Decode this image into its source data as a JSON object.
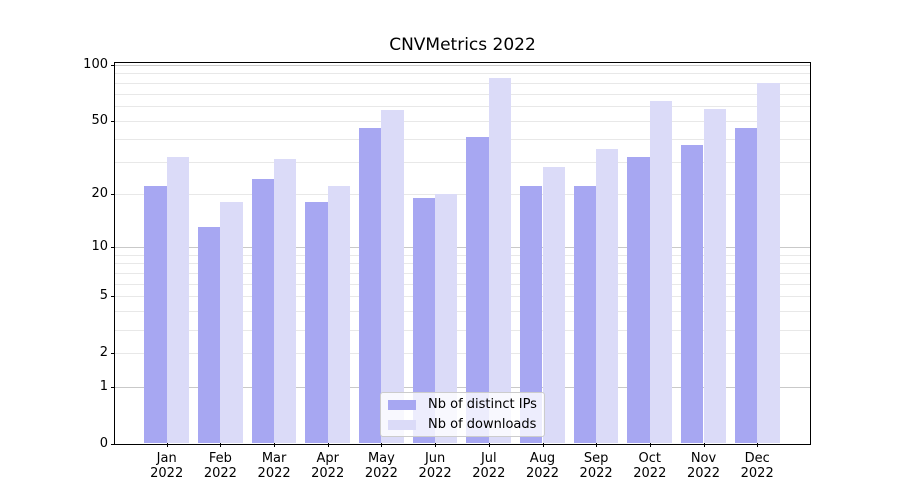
{
  "figure": {
    "title": "CNVMetrics 2022"
  },
  "chart_data": {
    "type": "bar",
    "title": "CNVMetrics 2022",
    "xlabel": "",
    "ylabel": "",
    "categories": [
      "Jan",
      "Feb",
      "Mar",
      "Apr",
      "May",
      "Jun",
      "Jul",
      "Aug",
      "Sep",
      "Oct",
      "Nov",
      "Dec"
    ],
    "x_tick_second_line": "2022",
    "series": [
      {
        "name": "Nb of distinct IPs",
        "color": "#a7a7f2",
        "values": [
          22,
          13,
          24,
          18,
          46,
          19,
          41,
          22,
          22,
          32,
          37,
          46
        ]
      },
      {
        "name": "Nb of downloads",
        "color": "#dbdbf8",
        "values": [
          32,
          18,
          31,
          22,
          57,
          20,
          85,
          28,
          35,
          64,
          58,
          80
        ]
      }
    ],
    "y_axis": {
      "scale": "log(1+x)",
      "ylim": [
        0,
        100
      ],
      "tick_values": [
        100,
        50,
        20,
        10,
        5,
        2,
        1,
        0
      ],
      "minor_gridline_values": [
        1,
        2,
        3,
        4,
        5,
        6,
        7,
        8,
        9,
        10,
        20,
        30,
        40,
        50,
        60,
        70,
        80,
        90,
        100
      ],
      "major_gridline_values": [
        1,
        10,
        100
      ]
    },
    "grid": "horizontal",
    "legend": {
      "position": "lower center",
      "entries": [
        "Nb of distinct IPs",
        "Nb of downloads"
      ]
    },
    "colors": {
      "background": "#ffffff",
      "minor_grid": "#e8e8e8",
      "major_grid": "#c9c9c9",
      "axis": "#000000"
    }
  }
}
